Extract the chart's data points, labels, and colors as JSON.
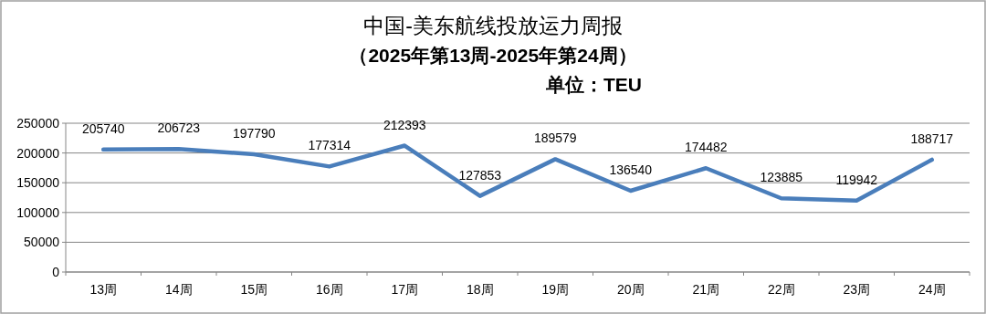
{
  "chart_data": {
    "type": "line",
    "title": "中国-美东航线投放运力周报",
    "subtitle": "（2025年第13周-2025年第24周）",
    "annotations": [
      "单位：TEU"
    ],
    "categories": [
      "13周",
      "14周",
      "15周",
      "16周",
      "17周",
      "18周",
      "19周",
      "20周",
      "21周",
      "22周",
      "23周",
      "24周"
    ],
    "series": [
      {
        "color": "#4a7ebb",
        "values": [
          205740,
          206723,
          197790,
          177314,
          212393,
          127853,
          189579,
          136540,
          174482,
          123885,
          119942,
          188717
        ]
      }
    ],
    "ylim": [
      0,
      250000
    ],
    "yticks": [
      0,
      50000,
      100000,
      150000,
      200000,
      250000
    ],
    "grid": "y",
    "data_labels": true,
    "marker": "none",
    "line_style": "solid"
  }
}
